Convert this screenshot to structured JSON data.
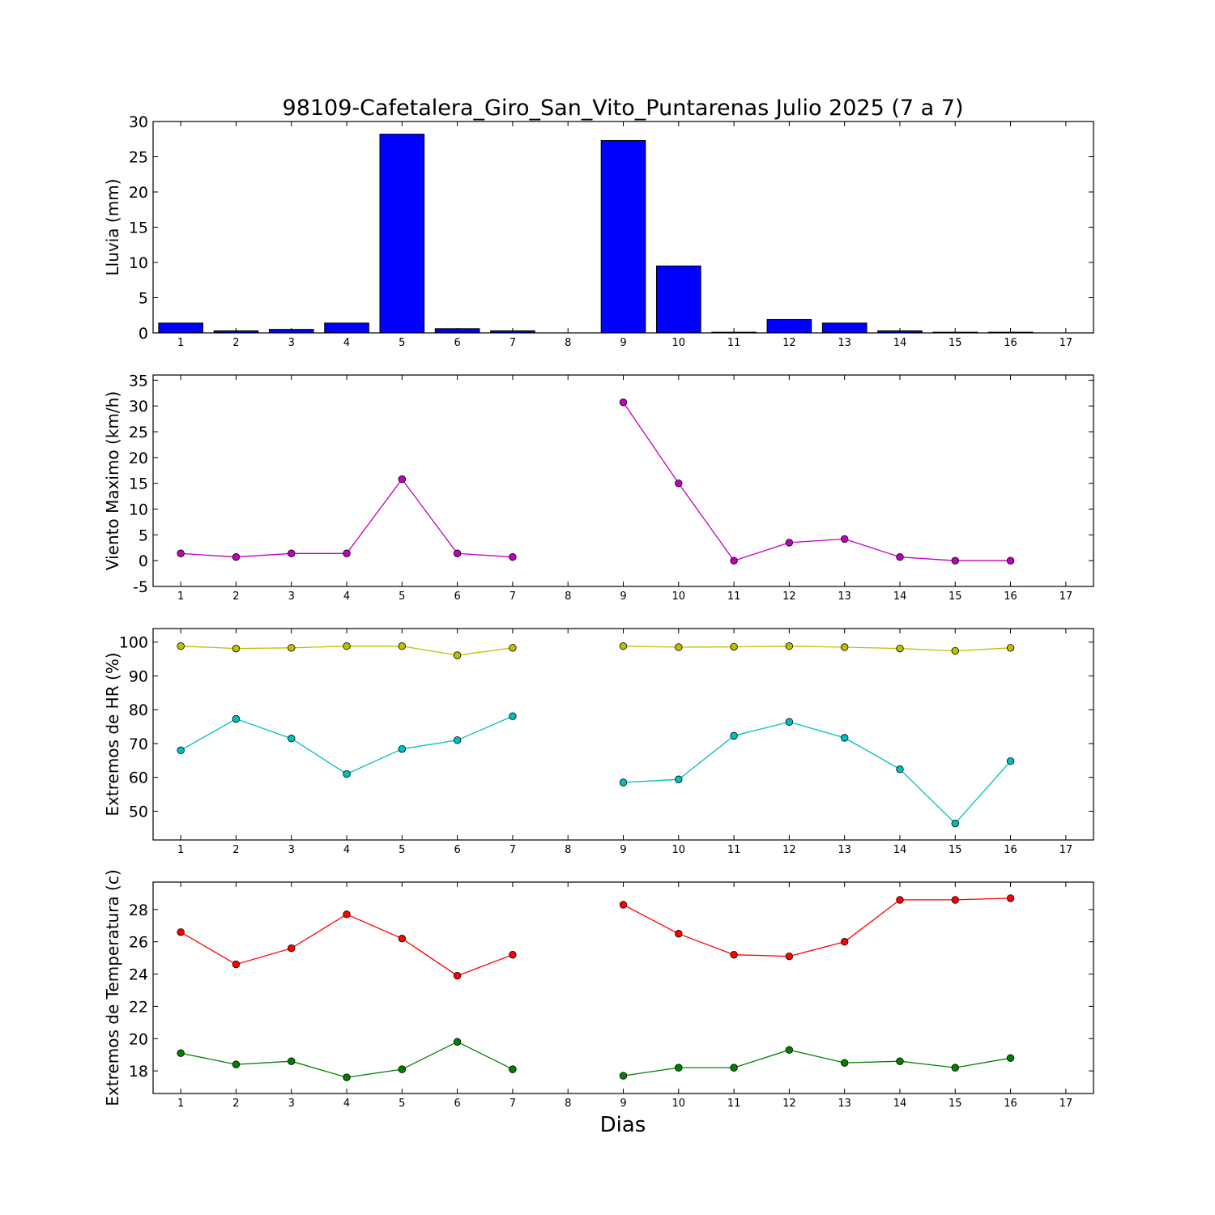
{
  "title": "98109-Cafetalera_Giro_San_Vito_Puntarenas Julio 2025  (7 a 7)",
  "xlabel": "Dias",
  "chart_data": [
    {
      "type": "bar",
      "ylabel": "Lluvia (mm)",
      "ylim": [
        0,
        30
      ],
      "yticks": [
        0,
        5,
        10,
        15,
        20,
        25,
        30
      ],
      "x": [
        1,
        2,
        3,
        4,
        5,
        6,
        7,
        8,
        9,
        10,
        11,
        12,
        13,
        14,
        15,
        16,
        17
      ],
      "xlim": [
        0.5,
        17.5
      ],
      "grid": false,
      "series": [
        {
          "color": "#0000ff",
          "values": [
            1.4,
            0.3,
            0.5,
            1.4,
            28.2,
            0.6,
            0.3,
            null,
            27.3,
            9.5,
            0.1,
            1.9,
            1.4,
            0.3,
            0.1,
            0.1,
            null
          ]
        }
      ]
    },
    {
      "type": "line",
      "ylabel": "Viento Maximo (km/h)",
      "ylim": [
        -5,
        36
      ],
      "yticks": [
        -5,
        0,
        5,
        10,
        15,
        20,
        25,
        30,
        35
      ],
      "x": [
        1,
        2,
        3,
        4,
        5,
        6,
        7,
        8,
        9,
        10,
        11,
        12,
        13,
        14,
        15,
        16,
        17
      ],
      "xlim": [
        0.5,
        17.5
      ],
      "grid": false,
      "series": [
        {
          "color": "#bf00bf",
          "values": [
            1.4,
            0.7,
            1.4,
            1.4,
            15.8,
            1.4,
            0.7,
            null,
            30.7,
            15.0,
            0.0,
            3.5,
            4.2,
            0.7,
            0.0,
            0.0,
            null
          ]
        }
      ]
    },
    {
      "type": "line",
      "ylabel": "Extremos de HR (%)",
      "ylim": [
        41.5,
        104
      ],
      "yticks": [
        50,
        60,
        70,
        80,
        90,
        100
      ],
      "x": [
        1,
        2,
        3,
        4,
        5,
        6,
        7,
        8,
        9,
        10,
        11,
        12,
        13,
        14,
        15,
        16,
        17
      ],
      "xlim": [
        0.5,
        17.5
      ],
      "grid": false,
      "series": [
        {
          "color": "#bfbf00",
          "values": [
            98.8,
            98.1,
            98.3,
            98.8,
            98.8,
            96.1,
            98.3,
            null,
            98.8,
            98.5,
            98.6,
            98.8,
            98.5,
            98.1,
            97.4,
            98.3,
            null
          ]
        },
        {
          "color": "#00bfbf",
          "values": [
            68.0,
            77.3,
            71.5,
            61.0,
            68.4,
            71.0,
            78.1,
            null,
            58.5,
            59.4,
            72.3,
            76.4,
            71.7,
            62.4,
            46.4,
            64.8,
            null
          ]
        }
      ]
    },
    {
      "type": "line",
      "ylabel": "Extremos de Temperatura (c)",
      "ylim": [
        16.6,
        29.7
      ],
      "yticks": [
        18,
        20,
        22,
        24,
        26,
        28
      ],
      "x": [
        1,
        2,
        3,
        4,
        5,
        6,
        7,
        8,
        9,
        10,
        11,
        12,
        13,
        14,
        15,
        16,
        17
      ],
      "xlim": [
        0.5,
        17.5
      ],
      "grid": false,
      "series": [
        {
          "color": "#ff0000",
          "values": [
            26.6,
            24.6,
            25.6,
            27.7,
            26.2,
            23.9,
            25.2,
            null,
            28.3,
            26.5,
            25.2,
            25.1,
            26.0,
            28.6,
            28.6,
            28.7,
            null
          ]
        },
        {
          "color": "#008000",
          "values": [
            19.1,
            18.4,
            18.6,
            17.6,
            18.1,
            19.8,
            18.1,
            null,
            17.7,
            18.2,
            18.2,
            19.3,
            18.5,
            18.6,
            18.2,
            18.8,
            null
          ]
        }
      ]
    }
  ]
}
